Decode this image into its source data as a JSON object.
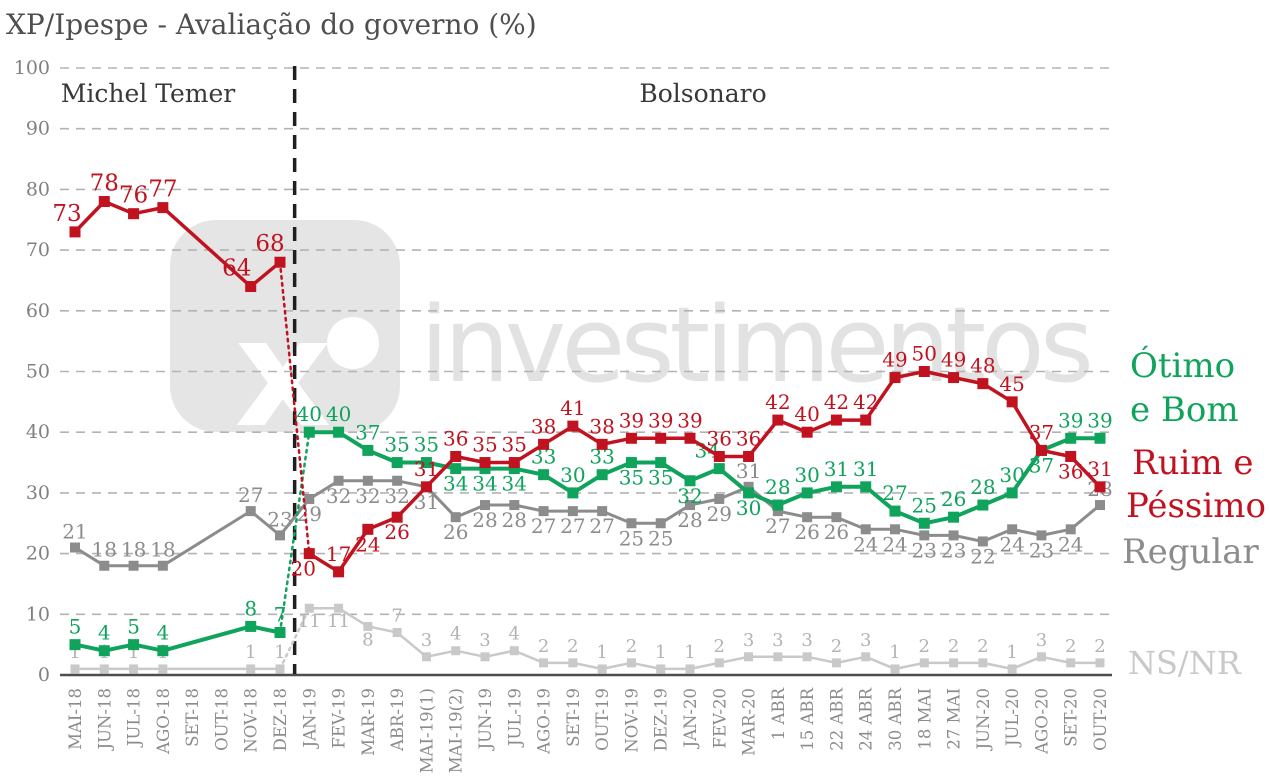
{
  "title": "XP/Ipespe - Avaliação do governo (%)",
  "annotations": {
    "temer": "Michel Temer",
    "bolsonaro": "Bolsonaro"
  },
  "watermark": {
    "logo_letter": "x",
    "brand_text": "investimentos"
  },
  "legend": {
    "otimo": [
      "Ótimo",
      "e Bom"
    ],
    "ruim": [
      "Ruim e",
      "Péssimo"
    ],
    "regular": "Regular",
    "nsnr": "NS/NR"
  },
  "chart_data": {
    "type": "line",
    "title": "XP/Ipespe - Avaliação do governo (%)",
    "xlabel": "",
    "ylabel": "",
    "ylim": [
      0,
      100
    ],
    "yticks": [
      0,
      10,
      20,
      30,
      40,
      50,
      60,
      70,
      80,
      90,
      100
    ],
    "grid": "horizontal-dashed",
    "legend_position": "right",
    "divider_between": [
      "DEZ-18",
      "JAN-19"
    ],
    "period_left": "Michel Temer",
    "period_right": "Bolsonaro",
    "categories": [
      "MAI-18",
      "JUN-18",
      "JUL-18",
      "AGO-18",
      "SET-18",
      "OUT-18",
      "NOV-18",
      "DEZ-18",
      "JAN-19",
      "FEV-19",
      "MAR-19",
      "ABR-19",
      "MAI-19(1)",
      "MAI-19(2)",
      "JUN-19",
      "JUL-19",
      "AGO-19",
      "SET-19",
      "OUT-19",
      "NOV-19",
      "DEZ-19",
      "JAN-20",
      "FEV-20",
      "MAR-20",
      "1 ABR",
      "15 ABR",
      "22 ABR",
      "24 ABR",
      "30 ABR",
      "18 MAI",
      "27 MAI",
      "JUN-20",
      "JUL-20",
      "AGO-20",
      "SET-20",
      "OUT-20"
    ],
    "series": [
      {
        "key": "otimo",
        "name": "Ótimo e Bom",
        "color": "#0fa35c",
        "values": [
          5,
          4,
          5,
          4,
          null,
          null,
          8,
          7,
          40,
          40,
          37,
          35,
          35,
          34,
          34,
          34,
          33,
          30,
          33,
          35,
          35,
          32,
          34,
          30,
          28,
          30,
          31,
          31,
          27,
          25,
          26,
          28,
          30,
          37,
          39,
          39
        ]
      },
      {
        "key": "ruim",
        "name": "Ruim e Péssimo",
        "color": "#c1121f",
        "values": [
          73,
          78,
          76,
          77,
          null,
          null,
          64,
          68,
          20,
          17,
          24,
          26,
          31,
          36,
          35,
          35,
          38,
          41,
          38,
          39,
          39,
          39,
          36,
          36,
          42,
          40,
          42,
          42,
          49,
          50,
          49,
          48,
          45,
          37,
          36,
          31
        ]
      },
      {
        "key": "regular",
        "name": "Regular",
        "color": "#8c8c8c",
        "values": [
          21,
          18,
          18,
          18,
          null,
          null,
          27,
          23,
          29,
          32,
          32,
          32,
          31,
          26,
          28,
          28,
          27,
          27,
          27,
          25,
          25,
          28,
          29,
          31,
          27,
          26,
          26,
          24,
          24,
          23,
          23,
          22,
          24,
          23,
          24,
          28
        ]
      },
      {
        "key": "nsnr",
        "name": "NS/NR",
        "color": "#c9c9c9",
        "label_color": "#b3b3b3",
        "values": [
          1,
          1,
          1,
          1,
          null,
          null,
          1,
          1,
          11,
          11,
          8,
          7,
          3,
          4,
          3,
          4,
          2,
          2,
          1,
          2,
          1,
          1,
          2,
          3,
          3,
          3,
          2,
          3,
          1,
          2,
          2,
          2,
          1,
          3,
          2,
          2
        ]
      }
    ]
  }
}
